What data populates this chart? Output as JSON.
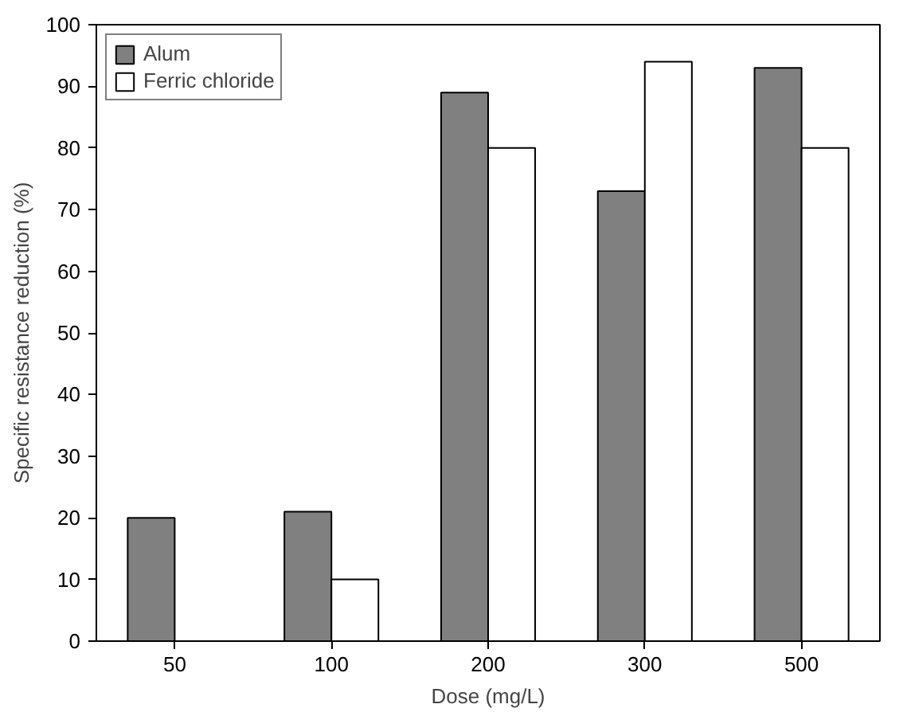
{
  "chart_data": {
    "type": "bar",
    "xlabel": "Dose (mg/L)",
    "ylabel": "Specific resistance reduction (%)",
    "categories": [
      "50",
      "100",
      "200",
      "300",
      "500"
    ],
    "series": [
      {
        "name": "Alum",
        "color": "#808080",
        "values": [
          20,
          21,
          89,
          73,
          93
        ]
      },
      {
        "name": "Ferric chloride",
        "color": "#ffffff",
        "values": [
          null,
          10,
          80,
          94,
          80
        ]
      }
    ],
    "ylim": [
      0,
      100
    ],
    "yticks": [
      0,
      10,
      20,
      30,
      40,
      50,
      60,
      70,
      80,
      90,
      100
    ],
    "grid": false,
    "legend": "top left"
  }
}
